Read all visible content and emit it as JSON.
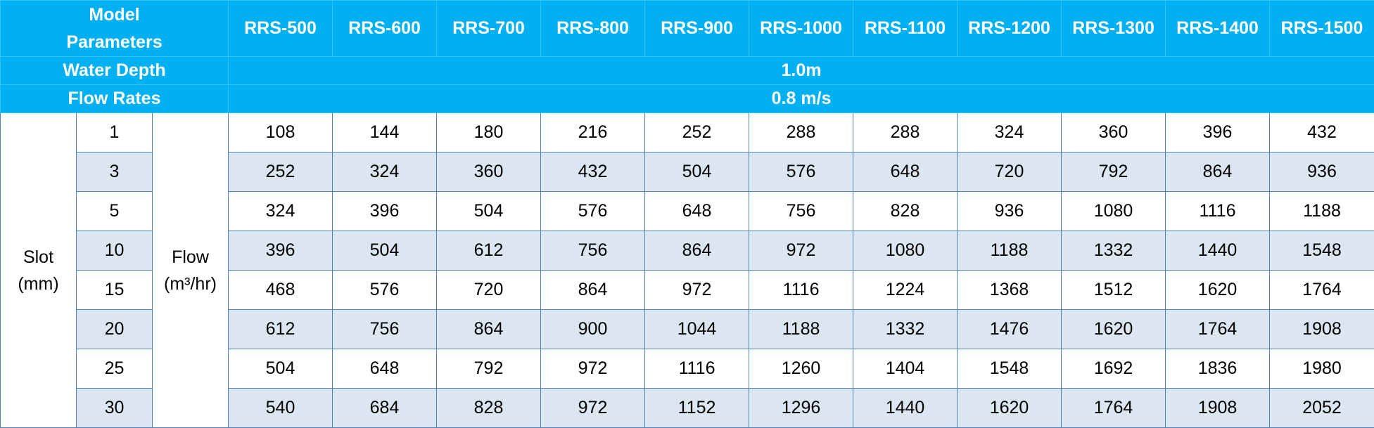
{
  "header": {
    "model_label": "Model",
    "parameters_label": "Parameters",
    "water_depth_label": "Water Depth",
    "water_depth_value": "1.0m",
    "flow_rates_label": "Flow Rates",
    "flow_rates_value": "0.8 m/s",
    "models": [
      "RRS-500",
      "RRS-600",
      "RRS-700",
      "RRS-800",
      "RRS-900",
      "RRS-1000",
      "RRS-1100",
      "RRS-1200",
      "RRS-1300",
      "RRS-1400",
      "RRS-1500"
    ]
  },
  "body": {
    "slot_label": "Slot",
    "slot_unit": "(mm)",
    "flow_label": "Flow",
    "flow_unit": "(m³/hr)",
    "rows": [
      {
        "slot": "1",
        "values": [
          "108",
          "144",
          "180",
          "216",
          "252",
          "288",
          "288",
          "324",
          "360",
          "396",
          "432"
        ]
      },
      {
        "slot": "3",
        "values": [
          "252",
          "324",
          "360",
          "432",
          "504",
          "576",
          "648",
          "720",
          "792",
          "864",
          "936"
        ]
      },
      {
        "slot": "5",
        "values": [
          "324",
          "396",
          "504",
          "576",
          "648",
          "756",
          "828",
          "936",
          "1080",
          "1116",
          "1188"
        ]
      },
      {
        "slot": "10",
        "values": [
          "396",
          "504",
          "612",
          "756",
          "864",
          "972",
          "1080",
          "1188",
          "1332",
          "1440",
          "1548"
        ]
      },
      {
        "slot": "15",
        "values": [
          "468",
          "576",
          "720",
          "864",
          "972",
          "1116",
          "1224",
          "1368",
          "1512",
          "1620",
          "1764"
        ]
      },
      {
        "slot": "20",
        "values": [
          "612",
          "756",
          "864",
          "900",
          "1044",
          "1188",
          "1332",
          "1476",
          "1620",
          "1764",
          "1908"
        ]
      },
      {
        "slot": "25",
        "values": [
          "504",
          "648",
          "792",
          "972",
          "1116",
          "1260",
          "1404",
          "1548",
          "1692",
          "1836",
          "1980"
        ]
      },
      {
        "slot": "30",
        "values": [
          "540",
          "684",
          "828",
          "972",
          "1152",
          "1296",
          "1440",
          "1620",
          "1764",
          "1908",
          "2052"
        ]
      }
    ]
  },
  "colors": {
    "header_bg": "#00b0f0",
    "header_text": "#ffffff",
    "alt_row_bg": "#dce6f1",
    "border": "#4f81bd"
  }
}
